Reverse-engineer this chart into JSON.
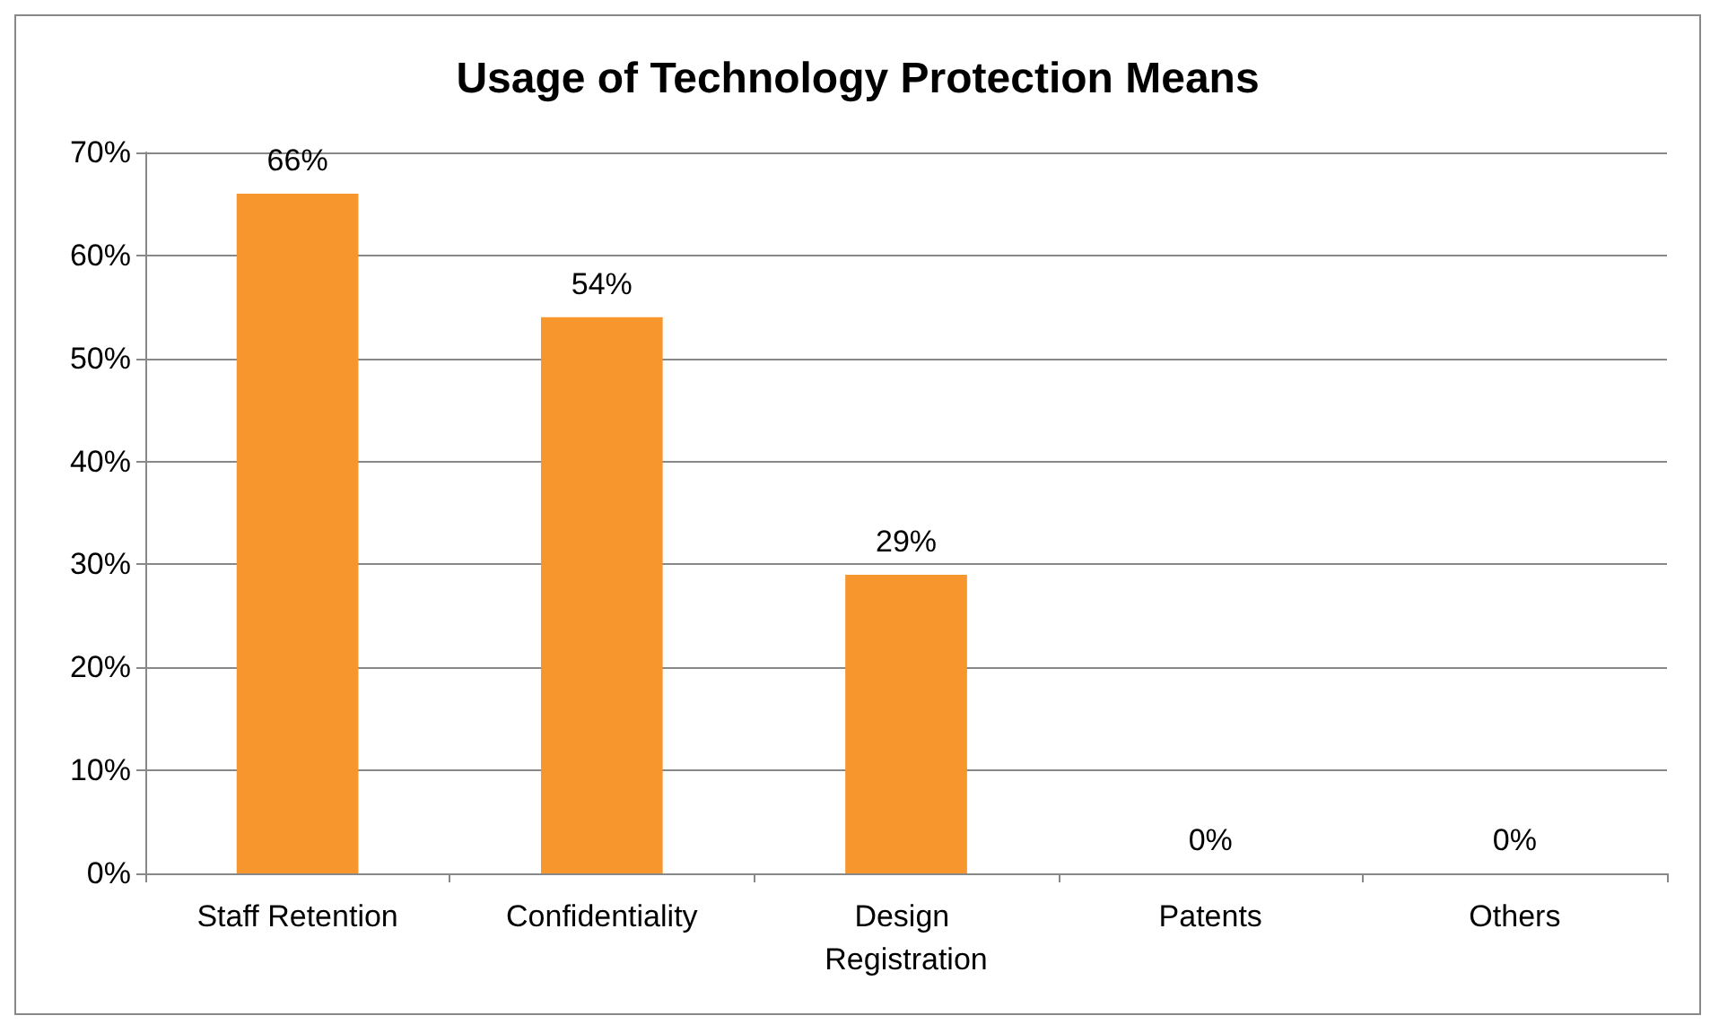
{
  "chart_data": {
    "type": "bar",
    "title": "Usage of Technology Protection Means",
    "categories": [
      "Staff Retention",
      "Confidentiality",
      "Design Registration",
      "Patents",
      "Others"
    ],
    "values": [
      66,
      54,
      29,
      0,
      0
    ],
    "value_labels": [
      "66%",
      "54%",
      "29%",
      "0%",
      "0%"
    ],
    "color": "#f7962d",
    "ylim": [
      0,
      70
    ],
    "yticks": [
      {
        "value": 0,
        "label": "0%"
      },
      {
        "value": 10,
        "label": "10%"
      },
      {
        "value": 20,
        "label": "20%"
      },
      {
        "value": 30,
        "label": "30%"
      },
      {
        "value": 40,
        "label": "40%"
      },
      {
        "value": 50,
        "label": "50%"
      },
      {
        "value": 60,
        "label": "60%"
      },
      {
        "value": 70,
        "label": "70%"
      }
    ],
    "grid": "y"
  }
}
